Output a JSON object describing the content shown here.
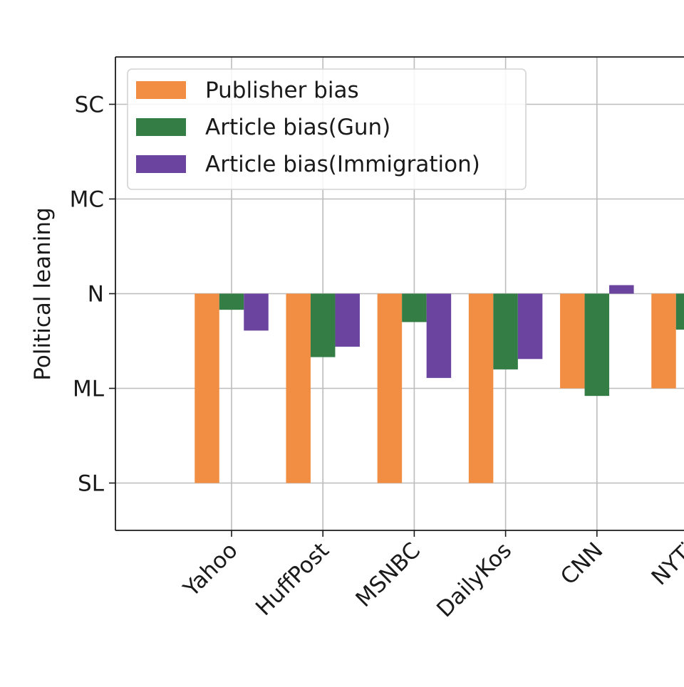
{
  "chart_data": {
    "type": "bar",
    "title": "",
    "xlabel": "",
    "ylabel": "Political leaning",
    "categories": [
      "Yahoo",
      "HuffPost",
      "MSNBC",
      "DailyKos",
      "CNN",
      "NYTimes"
    ],
    "category_labels_visible": [
      "Yahoo",
      "HuffPost",
      "MSNBC",
      "DailyKos",
      "CNN",
      "NYTi"
    ],
    "y_scale": "ordinal leaning: SL=-2, ML=-1, N=0, MC=1, SC=2",
    "yticks": [
      {
        "value": -2,
        "label": "SL"
      },
      {
        "value": -1,
        "label": "ML"
      },
      {
        "value": 0,
        "label": "N"
      },
      {
        "value": 1,
        "label": "MC"
      },
      {
        "value": 2,
        "label": "SC"
      }
    ],
    "ylim": [
      -2.5,
      2.5
    ],
    "grid": true,
    "legend_position": "top-left",
    "series": [
      {
        "name": "Publisher bias",
        "color": "#F28E43",
        "values": [
          -2,
          -2,
          -2,
          -2,
          -1,
          -1
        ]
      },
      {
        "name": "Article bias(Gun)",
        "color": "#347D45",
        "values": [
          -0.17,
          -0.67,
          -0.3,
          -0.8,
          -1.08,
          -0.38
        ]
      },
      {
        "name": "Article bias(Immigration)",
        "color": "#6A449F",
        "values": [
          -0.39,
          -0.56,
          -0.89,
          -0.69,
          0.09,
          null
        ]
      }
    ]
  }
}
